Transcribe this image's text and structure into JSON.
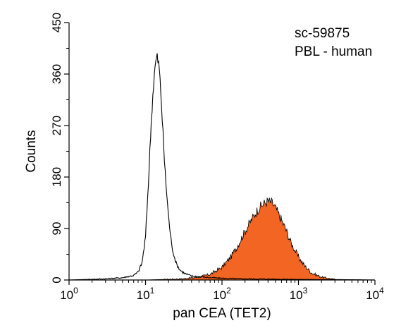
{
  "chart_data": {
    "type": "area",
    "title": "",
    "annotations": [
      "sc-59875",
      "PBL - human"
    ],
    "xlabel": "pan CEA (TET2)",
    "ylabel": "Counts",
    "x_scale": "log",
    "xlim": [
      1,
      10000
    ],
    "ylim": [
      0,
      450
    ],
    "x_ticks": [
      {
        "base": "10",
        "exp": "0",
        "value": 1
      },
      {
        "base": "10",
        "exp": "1",
        "value": 10
      },
      {
        "base": "10",
        "exp": "2",
        "value": 100
      },
      {
        "base": "10",
        "exp": "3",
        "value": 1000
      },
      {
        "base": "10",
        "exp": "4",
        "value": 10000
      }
    ],
    "y_ticks": [
      "0",
      "90",
      "180",
      "270",
      "360",
      "450"
    ],
    "grid": false,
    "legend": "none",
    "series": [
      {
        "style": "outline",
        "color": "#000000",
        "x": [
          1,
          3,
          5,
          7,
          8,
          9,
          10,
          11,
          12,
          13,
          14,
          15,
          16,
          17,
          18,
          20,
          22,
          25,
          28,
          32,
          36,
          40,
          50,
          70,
          100,
          200,
          1000,
          10000
        ],
        "y": [
          0,
          2,
          4,
          8,
          14,
          30,
          75,
          180,
          290,
          360,
          392,
          375,
          320,
          250,
          190,
          110,
          60,
          30,
          18,
          12,
          9,
          7,
          6,
          4,
          3,
          2,
          1,
          0
        ]
      },
      {
        "style": "filled",
        "color": "#f26522",
        "x": [
          1,
          10,
          30,
          50,
          70,
          100,
          130,
          160,
          200,
          250,
          300,
          350,
          400,
          450,
          500,
          600,
          700,
          800,
          1000,
          1200,
          1500,
          2000,
          3000,
          10000
        ],
        "y": [
          0,
          0,
          2,
          5,
          10,
          22,
          40,
          60,
          85,
          108,
          125,
          133,
          138,
          135,
          126,
          105,
          85,
          65,
          40,
          25,
          12,
          5,
          1,
          0
        ]
      }
    ]
  }
}
